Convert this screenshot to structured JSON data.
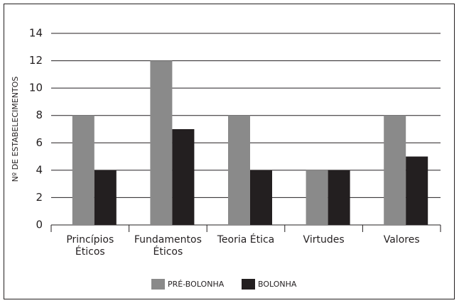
{
  "chart_data": {
    "type": "bar",
    "y_label": "Nº DE ESTABELECIMENTOS",
    "categories": [
      "Princípios Éticos",
      "Fundamentos Éticos",
      "Teoria Ética",
      "Virtudes",
      "Valores"
    ],
    "series": [
      {
        "name": "PRÉ-BOLONHA",
        "color": "#8a8a8a",
        "values": [
          8,
          12,
          8,
          4,
          8
        ]
      },
      {
        "name": "BOLONHA",
        "color": "#231f20",
        "values": [
          4,
          7,
          4,
          4,
          5
        ]
      }
    ],
    "ylim": [
      0,
      14
    ],
    "yticks": [
      0,
      2,
      4,
      6,
      8,
      10,
      12,
      14
    ],
    "grid": true,
    "legend": "bottom"
  }
}
